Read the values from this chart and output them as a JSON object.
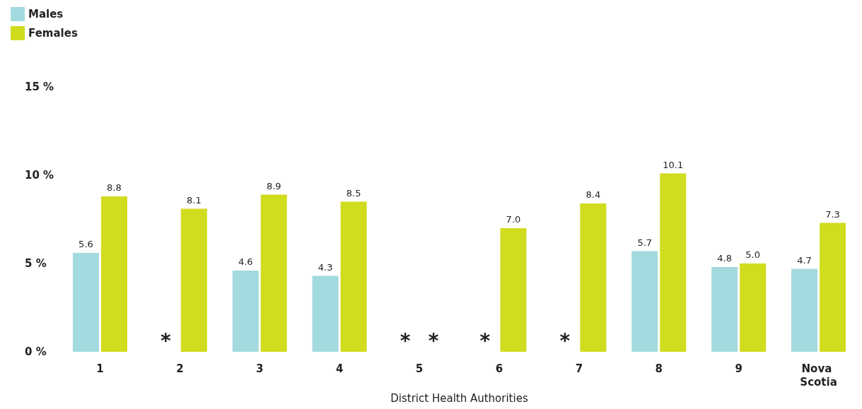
{
  "chart_data": {
    "type": "bar",
    "xlabel": "District Health Authorities",
    "categories": [
      "1",
      "2",
      "3",
      "4",
      "5",
      "6",
      "7",
      "8",
      "9",
      "Nova Scotia"
    ],
    "series": [
      {
        "name": "Males",
        "color": "#a3dadf",
        "values": [
          5.6,
          null,
          4.6,
          4.3,
          null,
          null,
          null,
          5.7,
          4.8,
          4.7
        ],
        "value_labels": [
          "5.6",
          "*",
          "4.6",
          "4.3",
          "*",
          "*",
          "*",
          "5.7",
          "4.8",
          "4.7"
        ]
      },
      {
        "name": "Females",
        "color": "#d0dc1e",
        "values": [
          8.8,
          8.1,
          8.9,
          8.5,
          null,
          7.0,
          8.4,
          10.1,
          5.0,
          7.3
        ],
        "value_labels": [
          "8.8",
          "8.1",
          "8.9",
          "8.5",
          "*",
          "7.0",
          "8.4",
          "10.1",
          "5.0",
          "7.3"
        ]
      }
    ],
    "ylim": [
      0,
      15
    ],
    "yticks": [
      {
        "value": 0,
        "label": "0 %"
      },
      {
        "value": 5,
        "label": "5 %"
      },
      {
        "value": 10,
        "label": "10 %"
      },
      {
        "value": 15,
        "label": "15 %"
      }
    ],
    "grid": false,
    "legend": "top left"
  }
}
